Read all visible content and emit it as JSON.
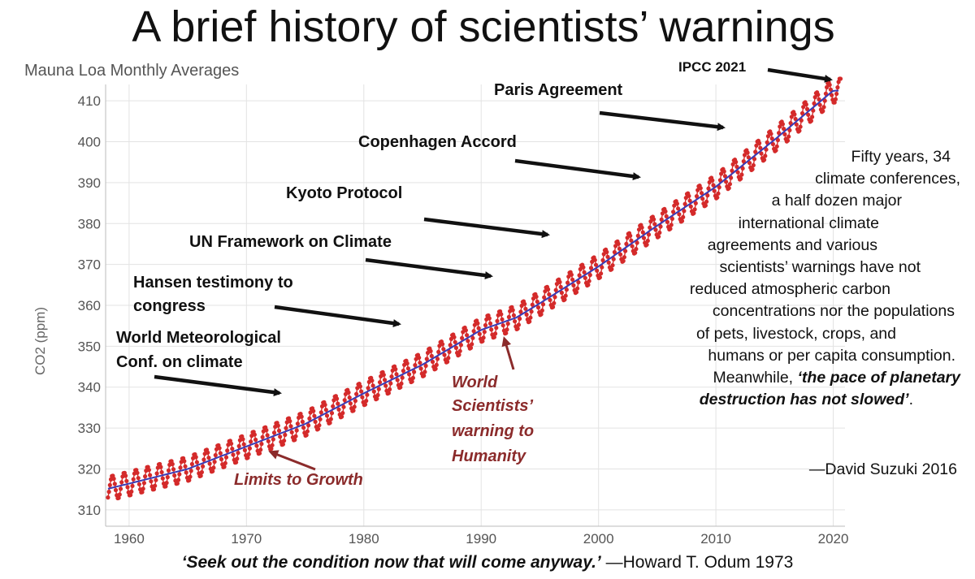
{
  "title": "A brief history of scientists’ warnings",
  "chart_data": {
    "type": "line",
    "title": "Mauna Loa Monthly Averages",
    "xlabel": "",
    "ylabel": "CO2 (ppm)",
    "xlim": [
      1958,
      2021
    ],
    "ylim": [
      306,
      414
    ],
    "x_ticks": [
      1960,
      1970,
      1980,
      1990,
      2000,
      2010,
      2020
    ],
    "y_ticks": [
      310,
      320,
      330,
      340,
      350,
      360,
      370,
      380,
      390,
      400,
      410
    ],
    "grid": true,
    "series": [
      {
        "trend_points": [
          [
            1958,
            315.0
          ],
          [
            1965,
            320.0
          ],
          [
            1970,
            325.5
          ],
          [
            1975,
            331.0
          ],
          [
            1980,
            338.5
          ],
          [
            1985,
            345.5
          ],
          [
            1990,
            354.0
          ],
          [
            1993,
            357.0
          ],
          [
            1995,
            360.5
          ],
          [
            2000,
            369.5
          ],
          [
            2005,
            379.5
          ],
          [
            2010,
            389.0
          ],
          [
            2015,
            400.5
          ],
          [
            2020,
            412.5
          ]
        ],
        "seasonal_amplitude_ppm": 3.0
      }
    ],
    "annotations": [
      {
        "label": "IPCC 2021",
        "year": 2020,
        "color": "#111111"
      },
      {
        "label": "Paris Agreement",
        "year": 2015,
        "color": "#111111"
      },
      {
        "label": "Copenhagen Accord",
        "year": 2009,
        "color": "#111111"
      },
      {
        "label": "Kyoto Protocol",
        "year": 1997,
        "color": "#111111"
      },
      {
        "label": "UN Framework on Climate",
        "year": 1992,
        "color": "#111111"
      },
      {
        "label": "Hansen testimony to congress",
        "year": 1988,
        "color": "#111111"
      },
      {
        "label": "World Meteorological Conf. on climate",
        "year": 1979,
        "color": "#111111"
      },
      {
        "label": "World Scientists’ warning to Humanity",
        "year": 1992,
        "color": "#8b2b2b"
      },
      {
        "label": "Limits to Growth",
        "year": 1972,
        "color": "#8b2b2b"
      }
    ],
    "colors": {
      "trend": "#3b3bb5",
      "monthly": "#d42a2a",
      "grid": "#e3e3e3",
      "axis_text": "#555555",
      "event_red": "#8b2b2b"
    }
  },
  "labels": {
    "ipcc": "IPCC 2021",
    "paris": "Paris Agreement",
    "copenhagen": "Copenhagen Accord",
    "kyoto": "Kyoto Protocol",
    "unfccc": "UN Framework on Climate",
    "hansen_1": "Hansen testimony to",
    "hansen_2": "congress",
    "wmo_1": "World Meteorological",
    "wmo_2": "Conf. on climate",
    "wsw_1": "World",
    "wsw_2": "Scientists’",
    "wsw_3": "warning to",
    "wsw_4": "Humanity",
    "ltg": "Limits to Growth"
  },
  "quote": {
    "line1": "Fifty years, 34",
    "line2": "climate conferences,",
    "line3": "a half dozen major",
    "line4": "international climate",
    "line5": "agreements and various",
    "line6": "scientists’ warnings have not",
    "line7": "reduced atmospheric carbon",
    "line8": "concentrations nor the populations",
    "line9": "of pets, livestock, crops, and",
    "line10": "humans or per capita consumption.",
    "line11_a": "Meanwhile, ",
    "line11_b": "‘the pace of planetary",
    "line12_a": "destruction has not slowed’",
    "line12_b": ".",
    "attribution": "—David Suzuki 2016"
  },
  "footer": {
    "quote": "‘Seek out the condition now that will come anyway.’",
    "attribution": " —Howard T. Odum 1973"
  }
}
